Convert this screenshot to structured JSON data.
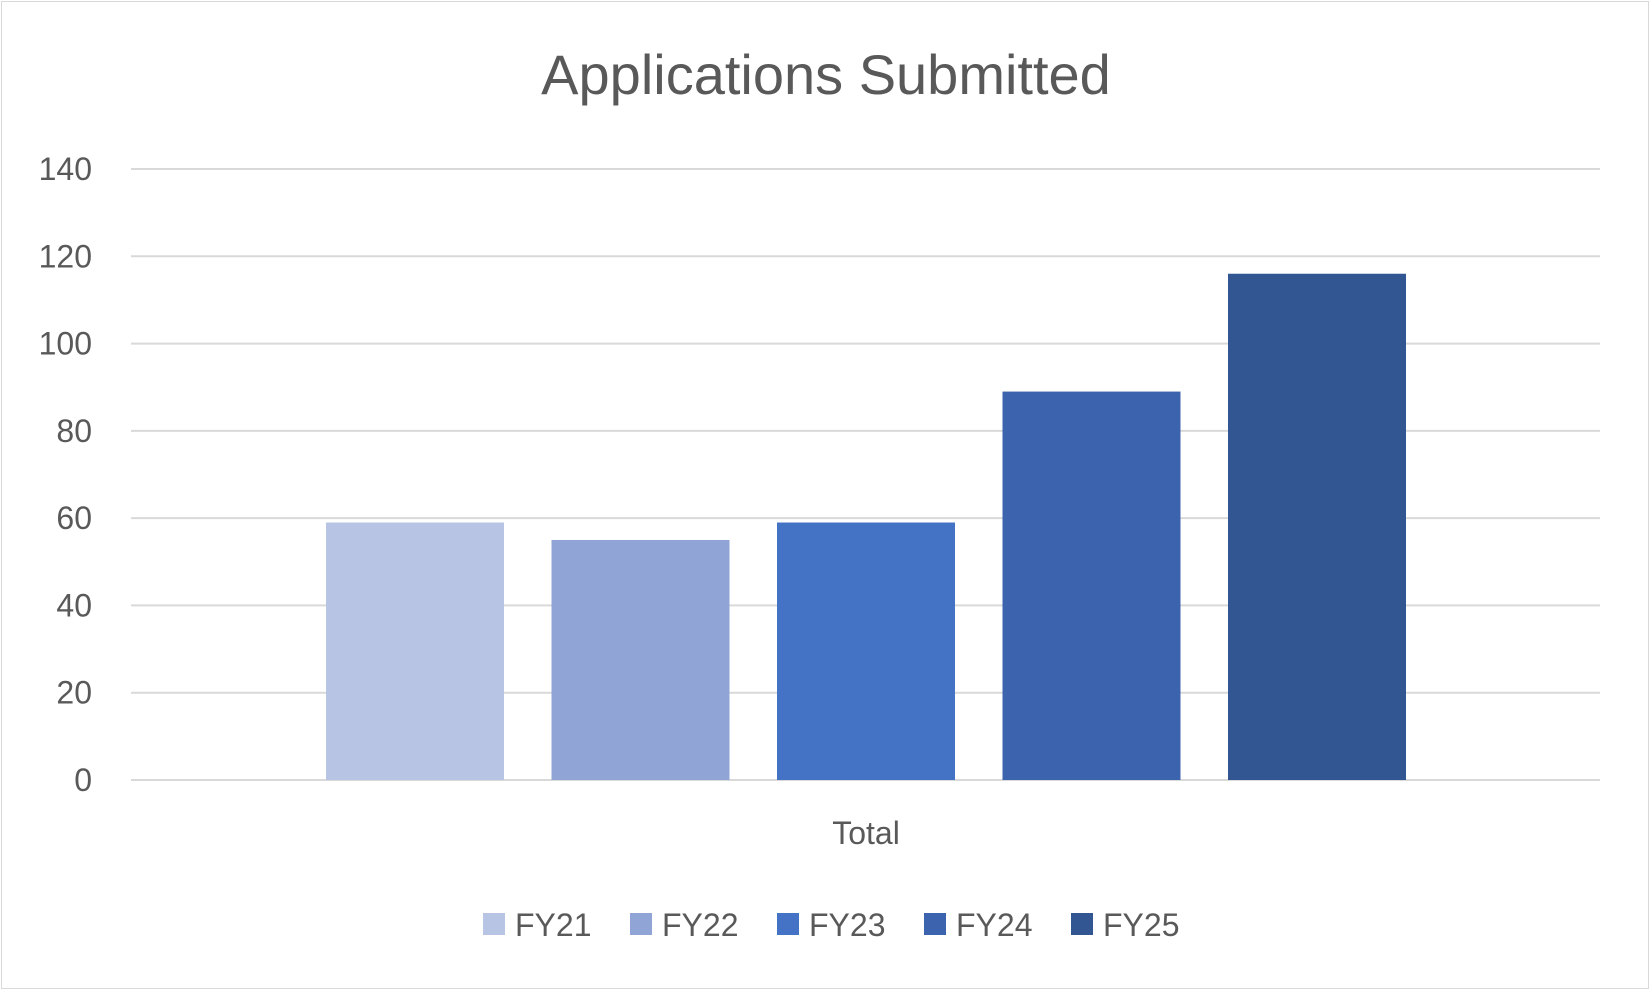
{
  "chart_data": {
    "type": "bar",
    "title": "Applications Submitted",
    "categories": [
      "Total"
    ],
    "series": [
      {
        "name": "FY21",
        "values": [
          59
        ],
        "color": "#b8c4e3"
      },
      {
        "name": "FY22",
        "values": [
          55
        ],
        "color": "#90a5d5"
      },
      {
        "name": "FY23",
        "values": [
          59
        ],
        "color": "#4472c4"
      },
      {
        "name": "FY24",
        "values": [
          89
        ],
        "color": "#3c64ae"
      },
      {
        "name": "FY25",
        "values": [
          116
        ],
        "color": "#315692"
      }
    ],
    "yticks": [
      "0",
      "20",
      "40",
      "60",
      "80",
      "100",
      "120",
      "140"
    ],
    "ylim": [
      0,
      140
    ],
    "grid": true,
    "legend": "bottom"
  }
}
